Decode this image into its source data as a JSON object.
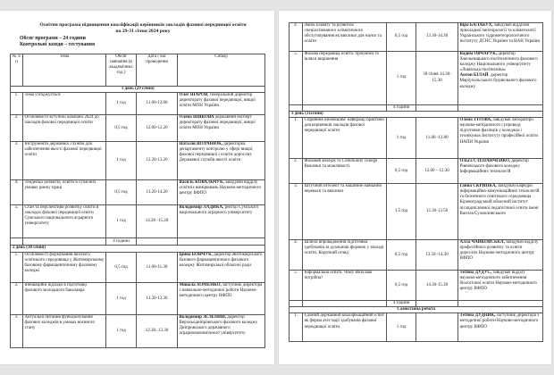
{
  "document": {
    "title_line1": "Освітня програма підвищення кваліфікації керівників закладів фахової передвищої освіти",
    "title_line2": "на 29-31 січня 2024 року",
    "volume": "Обсяг програми – 24 години",
    "control": "Контрольні заходи – тестування",
    "headers": [
      "№ з/п",
      "Тема",
      "Обсяг навчання (в академічних год.)",
      "Дата і час проведення",
      "Спікер"
    ]
  },
  "pages": [
    {
      "rows": [
        {
          "type": "day",
          "label": "1 день (29 січня)",
          "center": true
        },
        {
          "type": "item",
          "num": "1.",
          "topic": "Тема узгоджується",
          "hours": "1 год",
          "time": "11.00-12.00",
          "speakers": [
            {
              "name": "Олег ШАРОВ",
              "role": ", генеральний директор директорату фахової передвищої, вищої освіти МОН України"
            }
          ]
        },
        {
          "type": "item",
          "num": "2.",
          "topic": "Особливості вступної кампанії 2024 до закладів фахової передвищої освіти",
          "hours": "0,5 год",
          "time": "12.00-12.20",
          "speakers": [
            {
              "name": "Олена ШИКОВА",
              "role": " державний експерт директорату фахової передвищої, вищої освіти МОН України"
            }
          ]
        },
        {
          "type": "item",
          "num": "3.",
          "topic": "Інструменти державної служби для забезпечення якості фахової передвищої освіти",
          "hours": "1 год",
          "time": "12.20-13.20",
          "speakers": [
            {
              "name": "Наталія ВІТРАНЮК,",
              "role": " директорка департаменту контролю у сфері вищої, фахової передвищої і освіти дорослих Державної служби якості освіти"
            }
          ]
        },
        {
          "type": "item",
          "num": "4.",
          "topic": "Тенденції розвитку освіти в сучасних умовах ринку праці",
          "hours": "0,5 год",
          "time": "13.20-14.20",
          "speakers": [
            {
              "name": "Василь КОВАЛЬЧУК,",
              "role": " завідувач відділу освітніх вимірювань Науково-методичного центру ВФПО"
            }
          ]
        },
        {
          "type": "item",
          "num": "5.",
          "topic": "Стан та перспективи розвитку освіти в закладах фахової передвищої освіти Сумського національного аграрного університету",
          "hours": "1 год",
          "time": "14.20 -15.20",
          "speakers": [
            {
              "name": "Володимир ЛАДИКА,",
              "role": " ректор Сумського національного аграрного університету"
            }
          ]
        },
        {
          "type": "total",
          "hours": "4 години"
        },
        {
          "type": "day",
          "label": "2 день (30 січня)"
        },
        {
          "type": "item",
          "num": "1.",
          "topic": "Особливості формування якісного освітнього середовища у Житомирському базовому фармацевтичному фаховому коледжі",
          "hours": "0,5 год",
          "time": "11.00-11.30",
          "speakers": [
            {
              "name": "Ірина БОЙЧУК",
              "role": ", директор Житомирського базового фармацевтичного фахового коледжу Житомирської обласної ради"
            }
          ]
        },
        {
          "type": "item",
          "num": "2.",
          "topic": "Інноваційні підходи в підготовці фахового молодшого бакалавра",
          "hours": "1 год",
          "time": "11.30-12.30",
          "speakers": [
            {
              "name": "Микола ХОМЕНКО,",
              "role": " заступник директора з навчально-методичної роботи Науково-методичного центру ВФПО"
            }
          ]
        },
        {
          "type": "item",
          "num": "3.",
          "topic": "Актуальні питання функціонування фахових коледжів в умовах воєнного стану",
          "hours": "1 год",
          "time": "12.30.-13.30",
          "speakers": [
            {
              "name": "Володимир ЗЕЛЕНИЙ,",
              "role": " директор Верхньодніпровського фахового коледжу Дніпровського державного аграрноекономічного університету"
            }
          ]
        }
      ]
    },
    {
      "rows": [
        {
          "type": "item",
          "num": "4.",
          "topic": "Зміна клімату та розвиток спеціалізованого кліматичного обслуговування як виклики для науки та освіти",
          "hours": "0,5 год",
          "time": "13.30-14.30",
          "speakers": [
            {
              "name": "Віра БАЛАБУХ,",
              "role": " завідувач відділом прикладної метеорології та кліматології Українського гідрометеорологічного інституту ДСНС України та НАН України"
            }
          ]
        },
        {
          "type": "item",
          "num": "5.",
          "topic": "Фахова передвища освіта: проблеми та шляхи вирішення",
          "hours": "1 год",
          "time": "30 січня 14.30- 15.30",
          "speakers": [
            {
              "name": "Вадим ОВЧАРУК,",
              "role": " директор Хмельницького політехнічного фахового коледжу Національного університету «Львівська політехніка»"
            },
            {
              "name": "Антон БІЛАЙ",
              "role": ", директор Маріупольського будівельного фахового коледжу"
            }
          ]
        },
        {
          "type": "total",
          "hours": "4 години"
        },
        {
          "type": "day",
          "label": "3 день (31січня)"
        },
        {
          "type": "item",
          "num": "1.",
          "topic": "Сприяння інноваціям: найкращі практики для керівників закладів фахової передвищої освіти",
          "hours": "1 год",
          "time": "11.00 -12.00",
          "speakers": [
            {
              "name": "Олена ТІТОВА,",
              "role": " завідувач лабораторії науково-методичного супроводу підготовки фахівців у коледжах і технікумах Інституту професійної освіти НАПН України"
            }
          ]
        },
        {
          "type": "item",
          "num": "2.",
          "topic": "Фаховий коледж vs Community college. Виклики та можливості.",
          "hours": "0,5 год",
          "time": "12.00 – 12.30",
          "speakers": [
            {
              "name": "Ольга СТЕПАНЧЕНКО,",
              "role": " директор Рівненського фахового коледжу Інформаційних технологій"
            }
          ]
        },
        {
          "type": "item",
          "num": "3.",
          "topic": "Штучний інтелект та машинне навчання переваги та виклики",
          "hours": "1,5 год",
          "time": "12.30-13.50",
          "speakers": [
            {
              "name": "Ганна СКРИПКА,",
              "role": " завідувач кафедри інформаційно-комунікаційних технологій та безпечного освітнього середовища Кіровоградський обласний інститут післядипломної педагогічної освіти імені Василя Сухомлинського"
            }
          ]
        },
        {
          "type": "item",
          "num": "4.",
          "topic": "Шляхи впровадження підготовки здобувачів за дуальною формою у закладі освіти. Короткий огляд",
          "hours": "0,5 год",
          "time": "13.50 -14.30",
          "speakers": [
            {
              "name": "Алла ЧАЙКОВСЬКА,",
              "role": " завідувач відділу професійного розвитку та освіти дорослих Науково-методичного центру ВФПО"
            }
          ]
        },
        {
          "type": "item",
          "num": "5.",
          "topic": "Інформальна освіта. Чому вона вам потрібна?",
          "hours": "0,5 год",
          "time": "14.30-15.30",
          "speakers": [
            {
              "name": "Тетяна ДУДУС,",
              "role": " завідувач відділу науково-методичного забезпечення біологічної освіти Науково-методичного центру ВФПО"
            }
          ]
        },
        {
          "type": "total",
          "hours": "4 години"
        },
        {
          "type": "section",
          "label": "Самостійна робота"
        },
        {
          "type": "item",
          "num": "1.",
          "topic": "Єдиний державний кваліфікаційний іспит як форма атестації здобувачів фахової передвищої освіти",
          "hours": "1 год",
          "time": "",
          "speakers": [
            {
              "name": "Тетяна ДУДНИК,",
              "role": " заступник директора з методичної роботи Науково-методичного центру ВФПО"
            }
          ]
        }
      ]
    }
  ]
}
